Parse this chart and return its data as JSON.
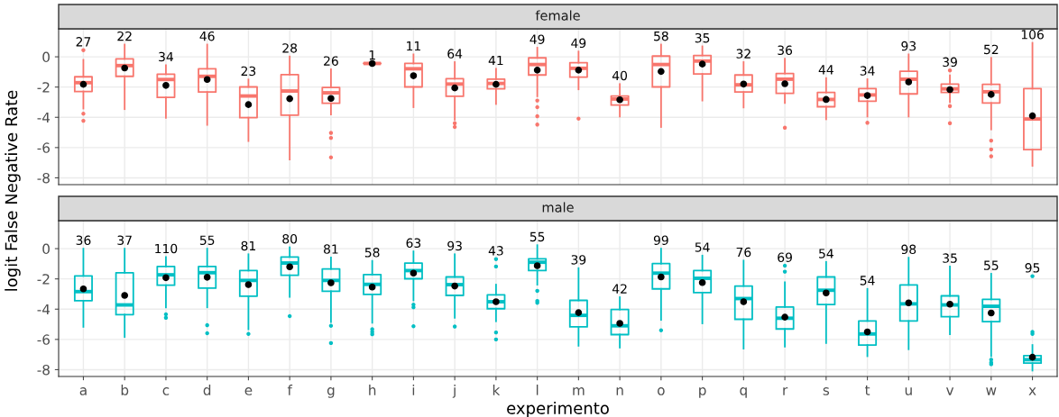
{
  "chart_data": [
    {
      "type": "box",
      "title": "female",
      "ylabel": "logit False Negative Rate",
      "color": "#f8766d",
      "ylim": [
        -8.45,
        1.85
      ],
      "yticks": [
        0,
        -2,
        -4,
        -6,
        -8
      ],
      "grid": true,
      "tick_labels": "y",
      "boxes": [
        {
          "low": -3.42,
          "q1": -2.29,
          "median": -1.71,
          "q3": -1.32,
          "high": -0.2,
          "mean": -1.82,
          "outliers": [
            0.44,
            -3.76,
            -4.23
          ]
        },
        {
          "low": -3.46,
          "q1": -1.29,
          "median": -0.58,
          "q3": -0.14,
          "high": 0.81,
          "mean": -0.74
        },
        {
          "low": -4.04,
          "q1": -2.68,
          "median": -1.5,
          "q3": -1.15,
          "high": -0.55,
          "mean": -1.89
        },
        {
          "low": -4.5,
          "q1": -2.33,
          "median": -1.29,
          "q3": -0.79,
          "high": 0.81,
          "mean": -1.5
        },
        {
          "low": -5.57,
          "q1": -4.02,
          "median": -2.59,
          "q3": -1.99,
          "high": -1.5,
          "mean": -3.16
        },
        {
          "low": -6.79,
          "q1": -3.86,
          "median": -2.26,
          "q3": -1.18,
          "high": 0.02,
          "mean": -2.77
        },
        {
          "low": -3.81,
          "q1": -3.07,
          "median": -2.38,
          "q3": -2.03,
          "high": -0.83,
          "mean": -2.75,
          "outliers": [
            -5.03,
            -5.36,
            -6.65
          ]
        },
        {
          "low": -0.44,
          "q1": -0.44,
          "median": -0.44,
          "q3": -0.44,
          "high": -0.44,
          "mean": -0.44
        },
        {
          "low": -3.33,
          "q1": -1.99,
          "median": -0.79,
          "q3": -0.44,
          "high": 0.16,
          "mean": -1.25
        },
        {
          "low": -4.16,
          "q1": -2.61,
          "median": -1.8,
          "q3": -1.45,
          "high": -0.35,
          "mean": -2.06,
          "outliers": [
            -4.39,
            -4.64
          ]
        },
        {
          "low": -3.12,
          "q1": -2.12,
          "median": -1.76,
          "q3": -1.48,
          "high": -0.79,
          "mean": -1.82
        },
        {
          "low": -2.61,
          "q1": -1.2,
          "median": -0.51,
          "q3": -0.07,
          "high": 0.6,
          "mean": -0.88,
          "outliers": [
            -2.89,
            -3.33,
            -3.93,
            -4.48
          ]
        },
        {
          "low": -2.15,
          "q1": -1.34,
          "median": -0.76,
          "q3": -0.39,
          "high": 0.35,
          "mean": -0.88,
          "outliers": [
            -4.09
          ]
        },
        {
          "low": -3.95,
          "q1": -3.19,
          "median": -2.79,
          "q3": -2.59,
          "high": -1.8,
          "mean": -2.84
        },
        {
          "low": -4.64,
          "q1": -1.99,
          "median": -0.51,
          "q3": 0.05,
          "high": 0.81,
          "mean": -0.97
        },
        {
          "low": -2.89,
          "q1": -1.13,
          "median": -0.28,
          "q3": 0.09,
          "high": 0.69,
          "mean": -0.48
        },
        {
          "low": -3.35,
          "q1": -2.33,
          "median": -1.85,
          "q3": -1.2,
          "high": -0.35,
          "mean": -1.8
        },
        {
          "low": -3.05,
          "q1": -2.42,
          "median": -1.48,
          "q3": -1.11,
          "high": -0.12,
          "mean": -1.78,
          "outliers": [
            -4.69
          ]
        },
        {
          "low": -4.13,
          "q1": -3.3,
          "median": -2.82,
          "q3": -2.36,
          "high": -1.41,
          "mean": -2.82
        },
        {
          "low": -3.95,
          "q1": -2.93,
          "median": -2.52,
          "q3": -2.1,
          "high": -1.48,
          "mean": -2.56,
          "outliers": [
            -4.36
          ]
        },
        {
          "low": -3.95,
          "q1": -2.45,
          "median": -1.48,
          "q3": -0.95,
          "high": 0.16,
          "mean": -1.66
        },
        {
          "low": -3.0,
          "q1": -2.36,
          "median": -2.12,
          "q3": -1.8,
          "high": -1.22,
          "mean": -2.17,
          "outliers": [
            -0.9,
            -3.26,
            -4.39
          ]
        },
        {
          "low": -4.8,
          "q1": -3.05,
          "median": -2.31,
          "q3": -1.82,
          "high": -0.07,
          "mean": -2.49,
          "outliers": [
            -5.54,
            -6.12,
            -6.58
          ]
        },
        {
          "low": -7.21,
          "q1": -6.14,
          "median": -4.11,
          "q3": -2.1,
          "high": 0.92,
          "mean": -3.9
        }
      ],
      "annotations": [
        "27",
        "22",
        "34",
        "46",
        "23",
        "28",
        "26",
        "1",
        "11",
        "64",
        "41",
        "49",
        "49",
        "40",
        "58",
        "35",
        "32",
        "36",
        "44",
        "34",
        "93",
        "39",
        "52",
        "106"
      ]
    },
    {
      "type": "box",
      "title": "male",
      "xlabel": "experimento",
      "categories": [
        "a",
        "b",
        "c",
        "d",
        "e",
        "f",
        "g",
        "h",
        "i",
        "j",
        "k",
        "l",
        "m",
        "n",
        "o",
        "p",
        "q",
        "r",
        "s",
        "t",
        "u",
        "v",
        "w",
        "x"
      ],
      "color": "#00bfc4",
      "ylim": [
        -8.45,
        1.85
      ],
      "yticks": [
        0,
        -2,
        -4,
        -6,
        -8
      ],
      "grid": true,
      "boxes": [
        {
          "low": -5.17,
          "q1": -3.44,
          "median": -2.84,
          "q3": -1.8,
          "high": 0.0,
          "mean": -2.66
        },
        {
          "low": -5.84,
          "q1": -4.36,
          "median": -3.72,
          "q3": -1.59,
          "high": 0.0,
          "mean": -3.09
        },
        {
          "low": -3.88,
          "q1": -2.42,
          "median": -1.73,
          "q3": -1.18,
          "high": -0.55,
          "mean": -1.92,
          "outliers": [
            -4.34,
            -4.57
          ]
        },
        {
          "low": -3.88,
          "q1": -2.61,
          "median": -1.59,
          "q3": -1.18,
          "high": 0.0,
          "mean": -1.89,
          "outliers": [
            -5.06,
            -5.59
          ]
        },
        {
          "low": -5.33,
          "q1": -3.14,
          "median": -2.1,
          "q3": -1.45,
          "high": -0.37,
          "mean": -2.38,
          "outliers": [
            -5.64
          ]
        },
        {
          "low": -3.19,
          "q1": -1.76,
          "median": -0.95,
          "q3": -0.55,
          "high": 0.09,
          "mean": -1.2,
          "outliers": [
            -4.46
          ]
        },
        {
          "low": -4.85,
          "q1": -2.82,
          "median": -2.1,
          "q3": -1.34,
          "high": -0.58,
          "mean": -2.26,
          "outliers": [
            -5.1,
            -6.24
          ]
        },
        {
          "low": -4.9,
          "q1": -3.03,
          "median": -2.36,
          "q3": -1.71,
          "high": -0.81,
          "mean": -2.54,
          "outliers": [
            -5.33,
            -5.5,
            -5.66
          ]
        },
        {
          "low": -3.42,
          "q1": -1.99,
          "median": -1.45,
          "q3": -0.95,
          "high": -0.18,
          "mean": -1.62,
          "outliers": [
            -3.7,
            -3.88,
            -5.13
          ]
        },
        {
          "low": -4.57,
          "q1": -3.09,
          "median": -2.38,
          "q3": -1.87,
          "high": -0.37,
          "mean": -2.47,
          "outliers": [
            -5.15
          ]
        },
        {
          "low": -4.8,
          "q1": -3.97,
          "median": -3.51,
          "q3": -3.05,
          "high": -2.38,
          "mean": -3.51,
          "outliers": [
            -0.69,
            -1.18,
            -5.54,
            -6.0
          ]
        },
        {
          "low": -2.38,
          "q1": -1.45,
          "median": -0.9,
          "q3": -0.67,
          "high": 0.23,
          "mean": -1.13,
          "outliers": [
            -2.79,
            -3.46,
            -3.58
          ]
        },
        {
          "low": -6.42,
          "q1": -5.17,
          "median": -4.41,
          "q3": -3.42,
          "high": -1.29,
          "mean": -4.23
        },
        {
          "low": -6.54,
          "q1": -5.68,
          "median": -5.1,
          "q3": -4.02,
          "high": -3.21,
          "mean": -4.94
        },
        {
          "low": -4.71,
          "q1": -2.66,
          "median": -1.62,
          "q3": -0.99,
          "high": 0.0,
          "mean": -1.87,
          "outliers": [
            -5.4
          ]
        },
        {
          "low": -4.94,
          "q1": -2.91,
          "median": -1.96,
          "q3": -1.45,
          "high": -0.46,
          "mean": -2.24
        },
        {
          "low": -6.61,
          "q1": -4.67,
          "median": -3.3,
          "q3": -2.47,
          "high": -0.79,
          "mean": -3.51
        },
        {
          "low": -6.47,
          "q1": -5.31,
          "median": -4.6,
          "q3": -3.86,
          "high": -2.22,
          "mean": -4.53,
          "outliers": [
            -1.13,
            -1.52
          ]
        },
        {
          "low": -6.24,
          "q1": -3.7,
          "median": -2.75,
          "q3": -1.87,
          "high": -0.88,
          "mean": -2.93
        },
        {
          "low": -7.11,
          "q1": -6.37,
          "median": -5.64,
          "q3": -4.78,
          "high": -2.66,
          "mean": -5.5
        },
        {
          "low": -6.65,
          "q1": -4.78,
          "median": -3.65,
          "q3": -2.4,
          "high": -0.6,
          "mean": -3.58
        },
        {
          "low": -5.66,
          "q1": -4.5,
          "median": -3.72,
          "q3": -3.12,
          "high": -1.18,
          "mean": -3.67
        },
        {
          "low": -7.11,
          "q1": -4.83,
          "median": -3.81,
          "q3": -3.35,
          "high": -1.66,
          "mean": -4.25,
          "outliers": [
            -7.34,
            -7.53,
            -7.64
          ]
        },
        {
          "low": -8.06,
          "q1": -7.57,
          "median": -7.34,
          "q3": -7.07,
          "high": -6.37,
          "mean": -7.18,
          "outliers": [
            -1.82,
            -5.5,
            -5.64
          ]
        }
      ],
      "annotations": [
        "36",
        "37",
        "110",
        "55",
        "81",
        "80",
        "81",
        "58",
        "63",
        "93",
        "43",
        "55",
        "39",
        "42",
        "99",
        "54",
        "76",
        "69",
        "54",
        "54",
        "98",
        "35",
        "55",
        "95"
      ]
    }
  ]
}
